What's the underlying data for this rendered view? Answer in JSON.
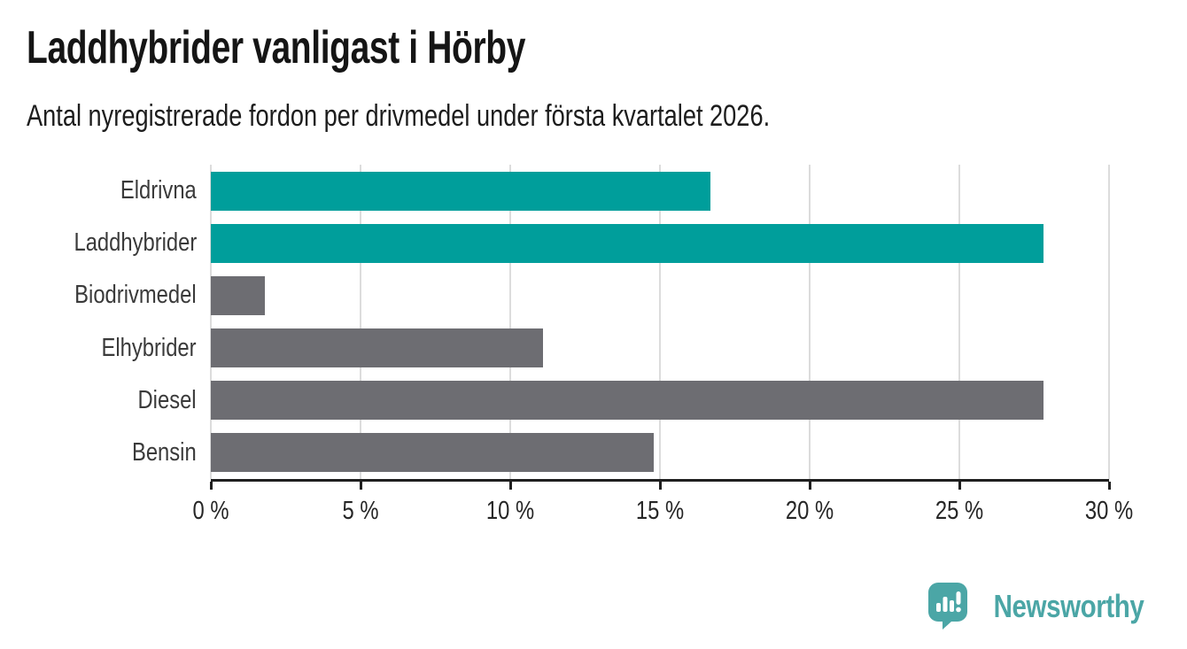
{
  "header": {
    "title": "Laddhybrider vanligast i Hörby",
    "subtitle": "Antal nyregistrerade fordon per drivmedel under första kvartalet 2026."
  },
  "chart_data": {
    "type": "bar",
    "orientation": "horizontal",
    "title": "Laddhybrider vanligast i Hörby",
    "subtitle": "Antal nyregistrerade fordon per drivmedel under första kvartalet 2026.",
    "categories": [
      "Eldrivna",
      "Laddhybrider",
      "Biodrivmedel",
      "Elhybrider",
      "Diesel",
      "Bensin"
    ],
    "values": [
      16.7,
      27.8,
      1.8,
      11.1,
      27.8,
      14.8
    ],
    "unit": "%",
    "bar_colors": [
      "#009E9B",
      "#009E9B",
      "#6D6D72",
      "#6D6D72",
      "#6D6D72",
      "#6D6D72"
    ],
    "xlim": [
      0,
      30
    ],
    "xticks": [
      0,
      5,
      10,
      15,
      20,
      25,
      30
    ],
    "xticklabels": [
      "0 %",
      "5 %",
      "10 %",
      "15 %",
      "20 %",
      "25 %",
      "30 %"
    ],
    "grid": "vertical",
    "legend": "none"
  },
  "colors": {
    "highlight": "#009E9B",
    "bar_default": "#6D6D72",
    "gridline": "#DCDCDC",
    "axis": "#1F1F1F",
    "brand": "#4BA6A6"
  },
  "footer": {
    "brand": "Newsworthy"
  }
}
